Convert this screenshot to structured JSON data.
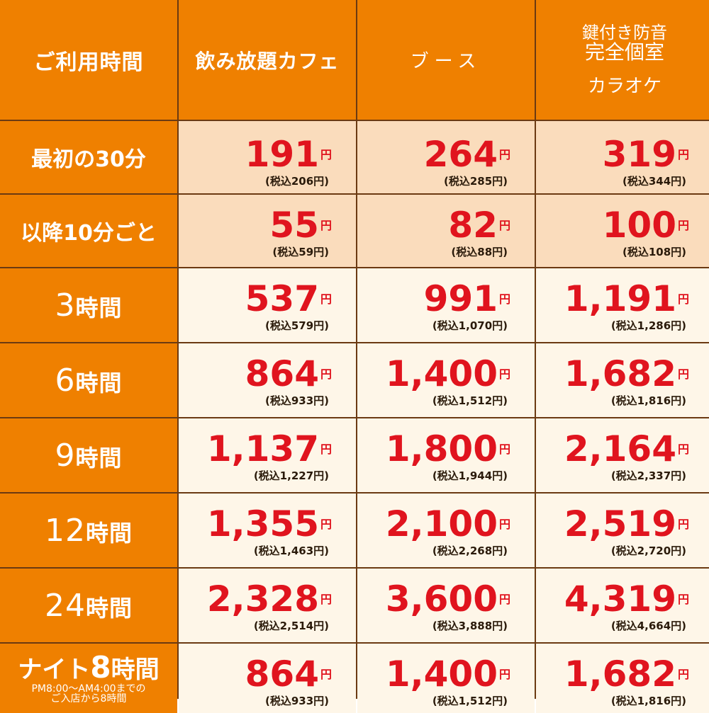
{
  "header": {
    "col0": "ご利用時間",
    "col1": "飲み放題カフェ",
    "col2": "ブース",
    "col3_line1": "鍵付き防音",
    "col3_line2": "完全個室",
    "col3_line3": "カラオケ"
  },
  "yen": "円",
  "rows": [
    {
      "label": "最初の30分",
      "prices": [
        {
          "amt": "191",
          "tax": "(税込206円)"
        },
        {
          "amt": "264",
          "tax": "(税込285円)"
        },
        {
          "amt": "319",
          "tax": "(税込344円)"
        }
      ]
    },
    {
      "label": "以降10分ごと",
      "prices": [
        {
          "amt": "55",
          "tax": "(税込59円)"
        },
        {
          "amt": "82",
          "tax": "(税込88円)"
        },
        {
          "amt": "100",
          "tax": "(税込108円)"
        }
      ]
    },
    {
      "label_num": "3",
      "label_unit": "時間",
      "prices": [
        {
          "amt": "537",
          "tax": "(税込579円)"
        },
        {
          "amt": "991",
          "tax": "(税込1,070円)"
        },
        {
          "amt": "1,191",
          "tax": "(税込1,286円)"
        }
      ]
    },
    {
      "label_num": "6",
      "label_unit": "時間",
      "prices": [
        {
          "amt": "864",
          "tax": "(税込933円)"
        },
        {
          "amt": "1,400",
          "tax": "(税込1,512円)"
        },
        {
          "amt": "1,682",
          "tax": "(税込1,816円)"
        }
      ]
    },
    {
      "label_num": "9",
      "label_unit": "時間",
      "prices": [
        {
          "amt": "1,137",
          "tax": "(税込1,227円)"
        },
        {
          "amt": "1,800",
          "tax": "(税込1,944円)"
        },
        {
          "amt": "2,164",
          "tax": "(税込2,337円)"
        }
      ]
    },
    {
      "label_num": "12",
      "label_unit": "時間",
      "prices": [
        {
          "amt": "1,355",
          "tax": "(税込1,463円)"
        },
        {
          "amt": "2,100",
          "tax": "(税込2,268円)"
        },
        {
          "amt": "2,519",
          "tax": "(税込2,720円)"
        }
      ]
    },
    {
      "label_num": "24",
      "label_unit": "時間",
      "prices": [
        {
          "amt": "2,328",
          "tax": "(税込2,514円)"
        },
        {
          "amt": "3,600",
          "tax": "(税込3,888円)"
        },
        {
          "amt": "4,319",
          "tax": "(税込4,664円)"
        }
      ]
    },
    {
      "label_pre": "ナイト",
      "label_num": "8",
      "label_unit": "時間",
      "label_note1": "PM8:00～AM4:00までの",
      "label_note2": "ご入店から8時間",
      "prices": [
        {
          "amt": "864",
          "tax": "(税込933円)"
        },
        {
          "amt": "1,400",
          "tax": "(税込1,512円)"
        },
        {
          "amt": "1,682",
          "tax": "(税込1,816円)"
        }
      ]
    }
  ],
  "colors": {
    "orange": "#ef8000",
    "pale": "#fadcbc",
    "cream": "#fef6e8",
    "price_red": "#e0141e",
    "border": "#6b3a12"
  }
}
